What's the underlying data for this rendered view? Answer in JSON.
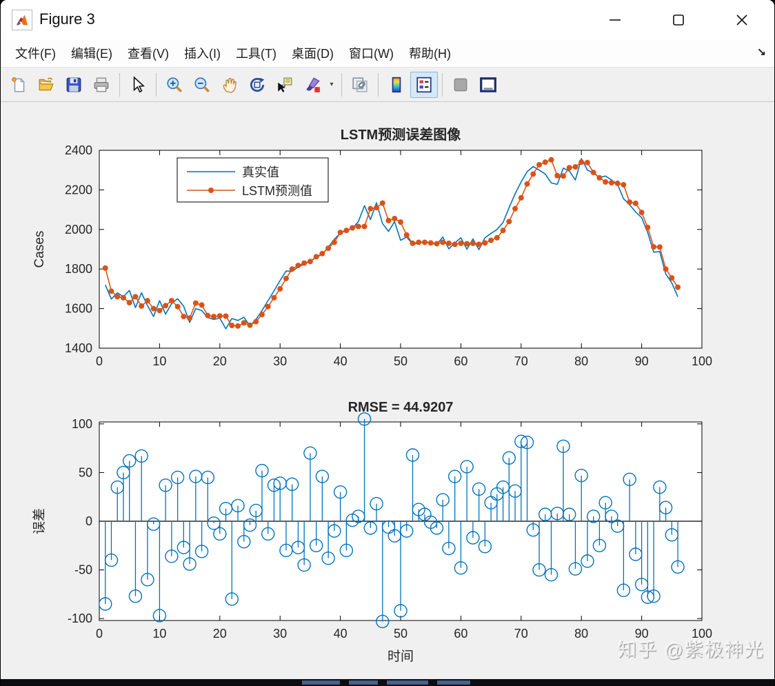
{
  "window": {
    "title": "Figure 3",
    "controls": {
      "minimize": "minimize",
      "maximize": "maximize",
      "close": "close"
    }
  },
  "menu": {
    "items": [
      "文件(F)",
      "编辑(E)",
      "查看(V)",
      "插入(I)",
      "工具(T)",
      "桌面(D)",
      "窗口(W)",
      "帮助(H)"
    ],
    "dock_arrow": "↘"
  },
  "toolbar": {
    "icons": [
      "new-document",
      "open-folder",
      "save",
      "print",
      "arrow-cursor",
      "zoom-in",
      "zoom-out",
      "pan-hand",
      "rotate-3d",
      "data-cursor",
      "brush",
      "link-plots",
      "insert-colorbar",
      "insert-legend",
      "plot-tools-hide",
      "plot-tools-dock"
    ],
    "active_icon": "insert-legend"
  },
  "watermark": "知乎 @紫极神光",
  "colors": {
    "actual_line": "#0072BD",
    "predicted_line": "#D95319",
    "stem": "#0072BD",
    "figure_bg": "#F0F0F0",
    "axis_text": "#262626"
  },
  "chart_data": [
    {
      "type": "line",
      "title": "LSTM预测误差图像",
      "xlabel": "",
      "ylabel": "Cases",
      "xlim": [
        0,
        100
      ],
      "ylim": [
        1400,
        2400
      ],
      "xticks": [
        0,
        10,
        20,
        30,
        40,
        50,
        60,
        70,
        80,
        90,
        100
      ],
      "yticks": [
        1400,
        1600,
        1800,
        2000,
        2200,
        2400
      ],
      "grid": false,
      "legend_position": "top-left",
      "x": {
        "from": 1,
        "to": 96,
        "step": 1
      },
      "series": [
        {
          "name": "真实值",
          "color": "#0072BD",
          "marker": "none",
          "values": [
            1720,
            1648,
            1680,
            1660,
            1692,
            1605,
            1680,
            1615,
            1560,
            1640,
            1572,
            1625,
            1650,
            1612,
            1530,
            1600,
            1590,
            1555,
            1545,
            1552,
            1498,
            1550,
            1540,
            1556,
            1512,
            1545,
            1590,
            1640,
            1690,
            1742,
            1790,
            1788,
            1810,
            1825,
            1840,
            1858,
            1875,
            1910,
            1950,
            1982,
            1995,
            2005,
            2040,
            2120,
            2050,
            2135,
            2030,
            1990,
            2040,
            1945,
            1962,
            1926,
            1930,
            1940,
            1930,
            1924,
            1962,
            1902,
            1932,
            1958,
            1900,
            1952,
            1898,
            1958,
            1980,
            2000,
            2035,
            2110,
            2180,
            2240,
            2292,
            2318,
            2300,
            2280,
            2235,
            2228,
            2310,
            2295,
            2250,
            2358,
            2300,
            2285,
            2262,
            2270,
            2250,
            2228,
            2155,
            2125,
            2088,
            2060,
            1985,
            1885,
            1888,
            1775,
            1730,
            1660
          ]
        },
        {
          "name": "LSTM预测值",
          "color": "#D95319",
          "marker": "dot",
          "values": [
            1805,
            1688,
            1660,
            1655,
            1630,
            1660,
            1613,
            1640,
            1600,
            1590,
            1615,
            1640,
            1610,
            1560,
            1552,
            1628,
            1618,
            1565,
            1560,
            1563,
            1562,
            1515,
            1512,
            1528,
            1516,
            1534,
            1570,
            1610,
            1655,
            1700,
            1752,
            1800,
            1818,
            1830,
            1838,
            1862,
            1878,
            1905,
            1935,
            1985,
            1995,
            2008,
            2015,
            2015,
            2105,
            2110,
            2133,
            2045,
            2055,
            2037,
            1972,
            1930,
            1935,
            1935,
            1932,
            1928,
            1935,
            1930,
            1925,
            1930,
            1928,
            1930,
            1925,
            1932,
            1945,
            1958,
            1995,
            2040,
            2105,
            2160,
            2230,
            2280,
            2327,
            2340,
            2352,
            2272,
            2270,
            2312,
            2316,
            2340,
            2338,
            2288,
            2261,
            2240,
            2236,
            2233,
            2226,
            2138,
            2132,
            2086,
            2010,
            1912,
            1911,
            1800,
            1755,
            1708
          ]
        }
      ]
    },
    {
      "type": "stem",
      "title": "RMSE = 44.9207",
      "xlabel": "时间",
      "ylabel": "误差",
      "xlim": [
        0,
        100
      ],
      "ylim": [
        -102,
        102
      ],
      "xticks": [
        0,
        10,
        20,
        30,
        40,
        50,
        60,
        70,
        80,
        90,
        100
      ],
      "yticks": [
        -100,
        -50,
        0,
        50,
        100
      ],
      "grid": false,
      "baseline": 0,
      "x": {
        "from": 1,
        "to": 96,
        "step": 1
      },
      "values": [
        -85,
        -40,
        35,
        50,
        62,
        -77,
        67,
        -60,
        -3,
        -97,
        37,
        -36,
        45,
        -27,
        -44,
        46,
        -31,
        45,
        -2,
        -13,
        13,
        -80,
        16,
        -21,
        -4,
        11,
        52,
        -13,
        37,
        39,
        -30,
        38,
        -27,
        -45,
        70,
        -25,
        46,
        -38,
        -10,
        30,
        -30,
        1,
        5,
        105,
        -7,
        18,
        -103,
        -6,
        -15,
        -92,
        -10,
        68,
        12,
        7,
        -1,
        -7,
        22,
        -28,
        46,
        -48,
        56,
        -17,
        33,
        -26,
        19,
        28,
        35,
        65,
        31,
        82,
        81,
        -9,
        -50,
        7,
        -55,
        8,
        77,
        7,
        -49,
        47,
        -41,
        5,
        -25,
        19,
        5,
        -5,
        -71,
        43,
        -34,
        -65,
        -78,
        -77,
        35,
        14,
        -14,
        -47
      ]
    }
  ]
}
